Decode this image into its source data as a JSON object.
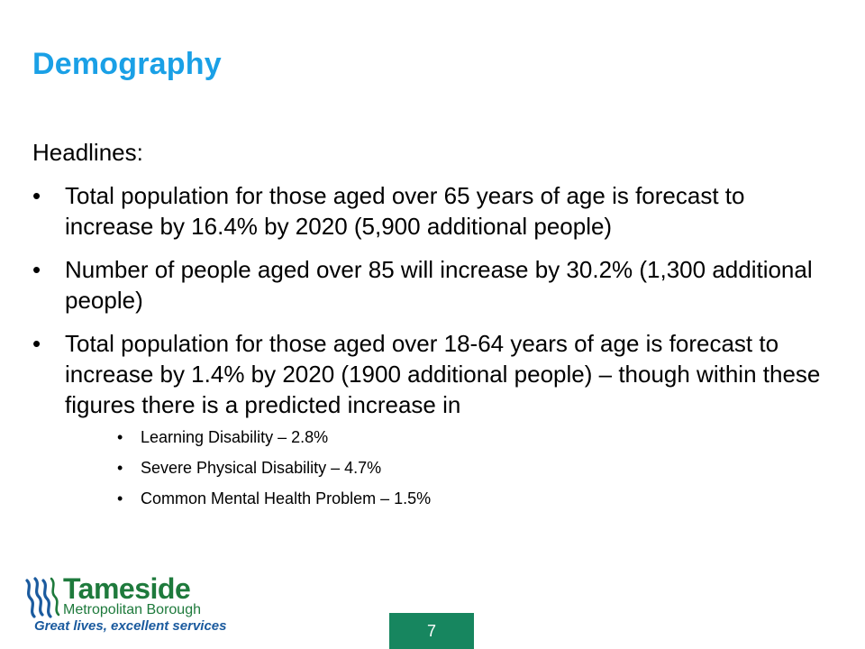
{
  "slide": {
    "title": "Demography",
    "headline": "Headlines:",
    "bullets": [
      "Total population for those aged over 65 years of age is forecast to increase by 16.4% by 2020 (5,900 additional people)",
      "Number of people aged over 85 will increase by 30.2% (1,300 additional people)",
      "Total population for those aged over 18-64 years of age is forecast to increase by 1.4% by 2020 (1900 additional people) – though within these figures there is a predicted increase in"
    ],
    "sub_bullets": [
      "Learning Disability – 2.8%",
      "Severe Physical Disability –  4.7%",
      "Common Mental Health Problem – 1.5%"
    ],
    "page_number": "7"
  },
  "logo": {
    "name": "Tameside",
    "subtitle": "Metropolitan Borough",
    "tagline": "Great lives, excellent services",
    "icon": "tameside-waves-icon"
  },
  "colors": {
    "title": "#1aa0e6",
    "logo_green": "#1e7a3c",
    "logo_blue": "#1a5a9e",
    "page_box": "#17865f"
  }
}
